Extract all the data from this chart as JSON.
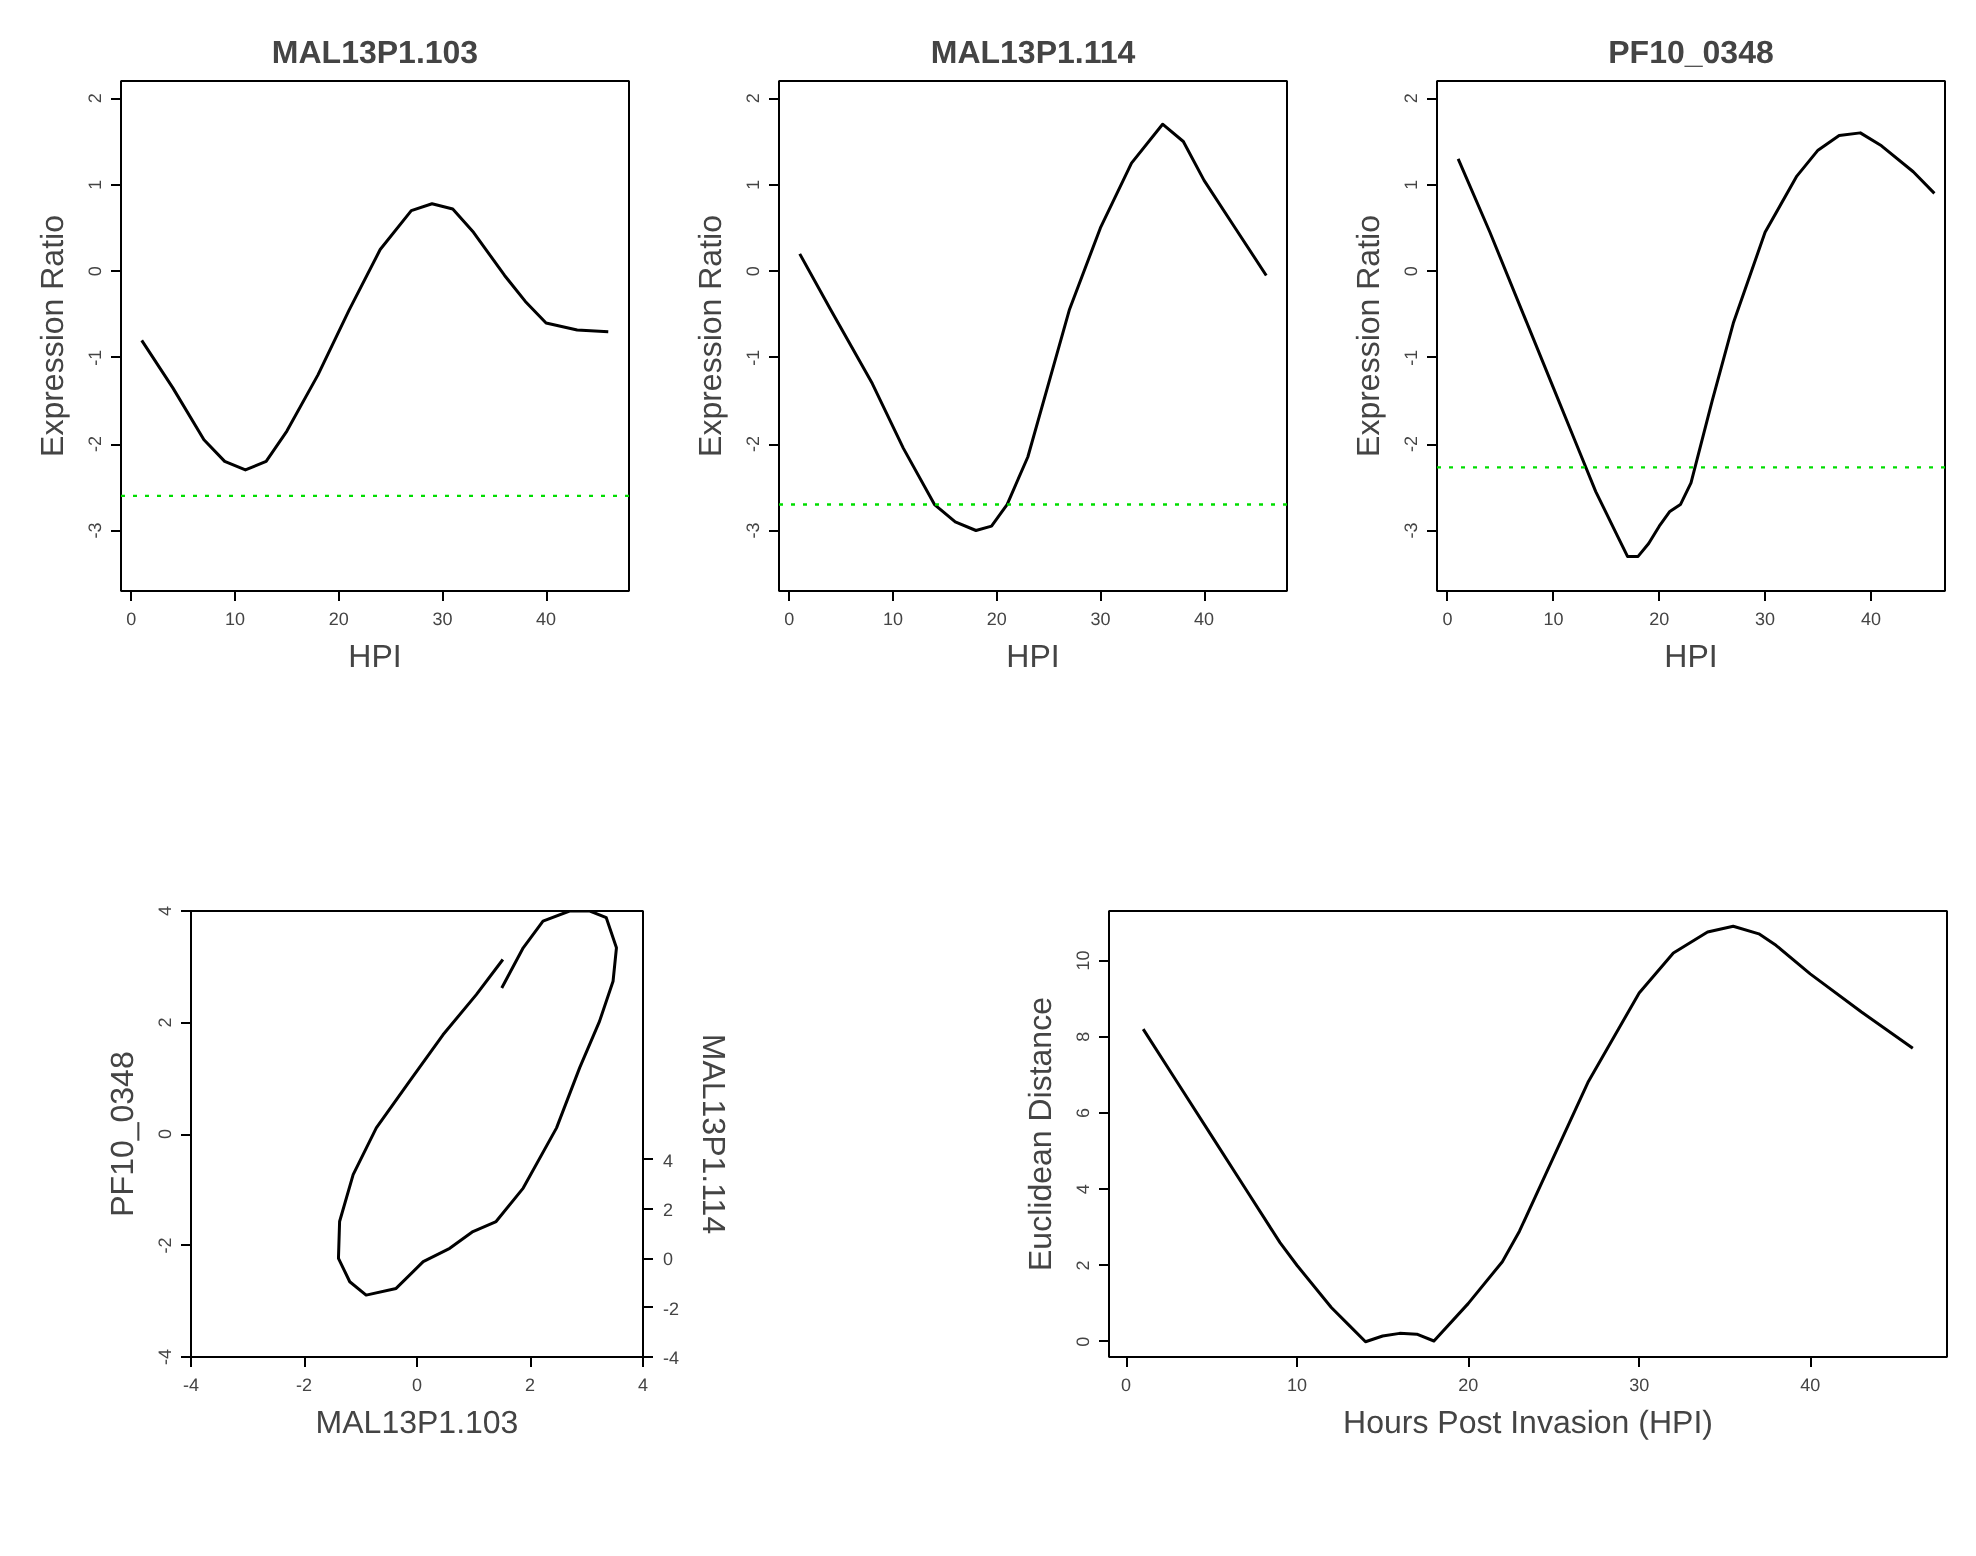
{
  "chart_data": [
    {
      "type": "line",
      "title": "MAL13P1.103",
      "xlabel": "HPI",
      "ylabel": "Expression Ratio",
      "xlim": [
        -1,
        48
      ],
      "ylim": [
        -3.7,
        2.2
      ],
      "xticks": [
        0,
        10,
        20,
        30,
        40
      ],
      "yticks": [
        -3,
        -2,
        -1,
        0,
        1,
        2
      ],
      "x": [
        1,
        4,
        7,
        9,
        11,
        13,
        15,
        18,
        21,
        24,
        27,
        29,
        31,
        33,
        36,
        38,
        40,
        43,
        46
      ],
      "series": [
        {
          "color": "#000000",
          "values": [
            -0.8,
            -1.35,
            -1.95,
            -2.2,
            -2.3,
            -2.2,
            -1.85,
            -1.2,
            -0.45,
            0.25,
            0.7,
            0.78,
            0.72,
            0.45,
            -0.05,
            -0.35,
            -0.6,
            -0.68,
            -0.7
          ]
        }
      ],
      "ref_lines": [
        {
          "axis": "y",
          "value": -2.6,
          "color": "#00dd00",
          "line_style": "dotted"
        }
      ]
    },
    {
      "type": "line",
      "title": "MAL13P1.114",
      "xlabel": "HPI",
      "ylabel": "Expression Ratio",
      "xlim": [
        -1,
        48
      ],
      "ylim": [
        -3.7,
        2.2
      ],
      "xticks": [
        0,
        10,
        20,
        30,
        40
      ],
      "yticks": [
        -3,
        -2,
        -1,
        0,
        1,
        2
      ],
      "x": [
        1,
        4,
        8,
        11,
        14,
        16,
        18,
        19.5,
        21,
        23,
        25,
        27,
        30,
        33,
        36,
        38,
        40,
        43,
        46
      ],
      "series": [
        {
          "color": "#000000",
          "values": [
            0.2,
            -0.45,
            -1.3,
            -2.05,
            -2.7,
            -2.9,
            -3.0,
            -2.95,
            -2.7,
            -2.15,
            -1.3,
            -0.45,
            0.5,
            1.25,
            1.7,
            1.5,
            1.05,
            0.5,
            -0.05
          ]
        }
      ],
      "ref_lines": [
        {
          "axis": "y",
          "value": -2.7,
          "color": "#00dd00",
          "line_style": "dotted"
        }
      ]
    },
    {
      "type": "line",
      "title": "PF10_0348",
      "xlabel": "HPI",
      "ylabel": "Expression Ratio",
      "xlim": [
        -1,
        47
      ],
      "ylim": [
        -3.7,
        2.2
      ],
      "xticks": [
        0,
        10,
        20,
        30,
        40
      ],
      "yticks": [
        -3,
        -2,
        -1,
        0,
        1,
        2
      ],
      "x": [
        1,
        4,
        7,
        10,
        12,
        14,
        16,
        17,
        18,
        19,
        20,
        21,
        22,
        23,
        25,
        27,
        30,
        33,
        35,
        37,
        39,
        41,
        44,
        46
      ],
      "series": [
        {
          "color": "#000000",
          "values": [
            1.3,
            0.45,
            -0.45,
            -1.35,
            -1.95,
            -2.55,
            -3.05,
            -3.3,
            -3.3,
            -3.15,
            -2.95,
            -2.78,
            -2.7,
            -2.45,
            -1.5,
            -0.6,
            0.45,
            1.1,
            1.4,
            1.57,
            1.6,
            1.45,
            1.15,
            0.9
          ]
        }
      ],
      "ref_lines": [
        {
          "axis": "y",
          "value": -2.27,
          "color": "#00dd00",
          "line_style": "dotted"
        }
      ]
    },
    {
      "type": "line",
      "xlabel": "MAL13P1.103",
      "ylabel": "PF10_0348",
      "y2label": "MAL13P1.114",
      "xlim": [
        -4,
        4
      ],
      "ylim": [
        -4,
        4
      ],
      "xticks": [
        -4,
        -2,
        0,
        2,
        4
      ],
      "yticks": [
        -4,
        -2,
        0,
        2,
        4
      ],
      "y2lim": [
        -4,
        14.1
      ],
      "y2ticks": [
        -4,
        -2,
        0,
        2,
        4
      ],
      "series": [
        {
          "color": "#000000",
          "x": [
            1.5,
            1.88,
            2.23,
            2.7,
            3.06,
            3.35,
            3.53,
            3.47,
            3.23,
            2.88,
            2.47,
            1.88,
            1.4,
            0.99,
            0.58,
            0.11,
            -0.37,
            -0.9,
            -1.19,
            -1.39,
            -1.37,
            -1.13,
            -0.72,
            -0.13,
            0.46,
            1.05,
            1.52
          ],
          "values": [
            2.62,
            3.34,
            3.82,
            4.0,
            4.0,
            3.88,
            3.34,
            2.74,
            2.02,
            1.19,
            0.11,
            -0.97,
            -1.57,
            -1.75,
            -2.05,
            -2.29,
            -2.77,
            -2.89,
            -2.65,
            -2.23,
            -1.57,
            -0.73,
            0.11,
            0.95,
            1.78,
            2.5,
            3.13
          ]
        }
      ]
    },
    {
      "type": "line",
      "xlabel": "Hours Post Invasion (HPI)",
      "ylabel": "Euclidean Distance",
      "xlim": [
        -1,
        48
      ],
      "ylim": [
        -0.4,
        11.3
      ],
      "xticks": [
        0,
        10,
        20,
        30,
        40
      ],
      "yticks": [
        0,
        2,
        4,
        6,
        8,
        10
      ],
      "x": [
        1,
        3,
        5,
        7,
        9,
        10,
        12,
        13,
        14,
        15,
        16,
        17,
        18,
        20,
        22,
        23,
        25,
        27,
        30,
        32,
        34,
        35.5,
        37,
        38,
        40,
        43,
        46
      ],
      "series": [
        {
          "color": "#000000",
          "values": [
            8.2,
            6.8,
            5.4,
            4.0,
            2.6,
            2.0,
            0.9,
            0.45,
            0.0,
            0.15,
            0.22,
            0.2,
            0.02,
            1.0,
            2.1,
            2.9,
            4.85,
            6.8,
            9.15,
            10.2,
            10.75,
            10.9,
            10.7,
            10.4,
            9.65,
            8.65,
            7.7
          ]
        }
      ]
    }
  ]
}
